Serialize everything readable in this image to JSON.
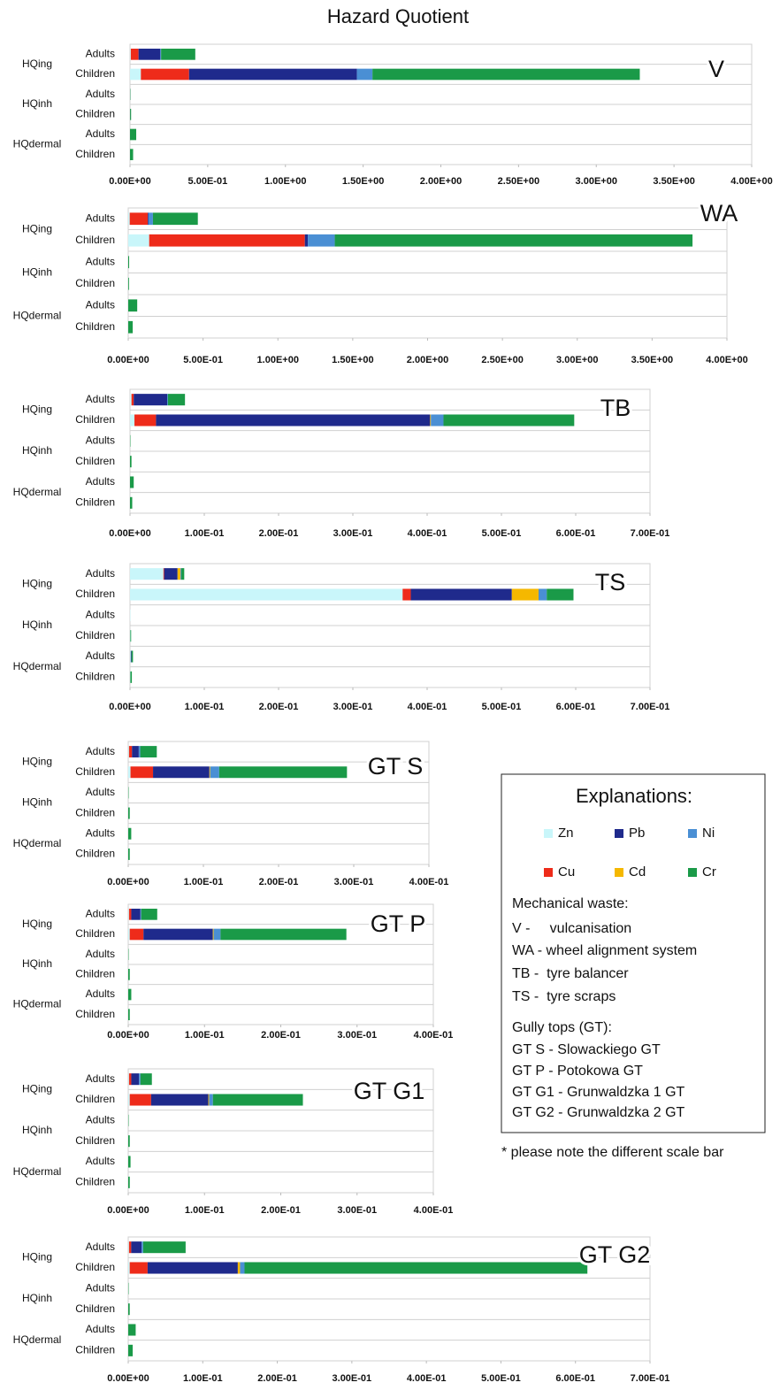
{
  "title": "Hazard Quotient",
  "chart_data": [
    {
      "type": "bar",
      "orientation": "horizontal",
      "stacked": true,
      "panel_label": "V",
      "groups": [
        "HQing",
        "HQinh",
        "HQdermal"
      ],
      "categories": [
        "Adults",
        "Children",
        "Adults",
        "Children",
        "Adults",
        "Children"
      ],
      "series": [
        {
          "name": "Zn",
          "color": "#c9f6fa",
          "values": [
            0.005,
            0.07,
            0,
            0,
            0,
            0
          ]
        },
        {
          "name": "Cu",
          "color": "#ee2b1a",
          "values": [
            0.05,
            0.31,
            0,
            0,
            0,
            0
          ]
        },
        {
          "name": "Pb",
          "color": "#1f2a8c",
          "values": [
            0.14,
            1.08,
            0.001,
            0.001,
            0,
            0
          ]
        },
        {
          "name": "Cd",
          "color": "#f5b800",
          "values": [
            0,
            0,
            0,
            0,
            0,
            0
          ]
        },
        {
          "name": "Ni",
          "color": "#4a8fd4",
          "values": [
            0.005,
            0.1,
            0,
            0,
            0,
            0
          ]
        },
        {
          "name": "Cr",
          "color": "#1a9a48",
          "values": [
            0.22,
            1.72,
            0.002,
            0.006,
            0.04,
            0.02
          ]
        }
      ],
      "xlim": [
        0,
        4
      ],
      "xticks": [
        {
          "value": 0,
          "label": "0.00E+00"
        },
        {
          "value": 0.5,
          "label": "5.00E-01"
        },
        {
          "value": 1,
          "label": "1.00E+00"
        },
        {
          "value": 1.5,
          "label": "1.50E+00"
        },
        {
          "value": 2,
          "label": "2.00E+00"
        },
        {
          "value": 2.5,
          "label": "2.50E+00"
        },
        {
          "value": 3,
          "label": "3.00E+00"
        },
        {
          "value": 3.5,
          "label": "3.50E+00"
        },
        {
          "value": 4,
          "label": "4.00E+00"
        }
      ]
    },
    {
      "type": "bar",
      "orientation": "horizontal",
      "stacked": true,
      "panel_label": "WA",
      "groups": [
        "HQing",
        "HQinh",
        "HQdermal"
      ],
      "categories": [
        "Adults",
        "Children",
        "Adults",
        "Children",
        "Adults",
        "Children"
      ],
      "series": [
        {
          "name": "Zn",
          "color": "#c9f6fa",
          "values": [
            0.01,
            0.14,
            0,
            0,
            0,
            0
          ]
        },
        {
          "name": "Cu",
          "color": "#ee2b1a",
          "values": [
            0.12,
            1.04,
            0,
            0,
            0,
            0
          ]
        },
        {
          "name": "Pb",
          "color": "#1f2a8c",
          "values": [
            0.005,
            0.02,
            0,
            0,
            0,
            0
          ]
        },
        {
          "name": "Cd",
          "color": "#f5b800",
          "values": [
            0,
            0,
            0,
            0,
            0,
            0
          ]
        },
        {
          "name": "Ni",
          "color": "#4a8fd4",
          "values": [
            0.03,
            0.18,
            0,
            0,
            0,
            0
          ]
        },
        {
          "name": "Cr",
          "color": "#1a9a48",
          "values": [
            0.3,
            2.39,
            0.006,
            0.005,
            0.06,
            0.03
          ]
        }
      ],
      "xlim": [
        0,
        4
      ],
      "xticks": [
        {
          "value": 0,
          "label": "0.00E+00"
        },
        {
          "value": 0.5,
          "label": "5.00E-01"
        },
        {
          "value": 1,
          "label": "1.00E+00"
        },
        {
          "value": 1.5,
          "label": "1.50E+00"
        },
        {
          "value": 2,
          "label": "2.00E+00"
        },
        {
          "value": 2.5,
          "label": "2.50E+00"
        },
        {
          "value": 3,
          "label": "3.00E+00"
        },
        {
          "value": 3.5,
          "label": "3.50E+00"
        },
        {
          "value": 4,
          "label": "4.00E+00"
        }
      ]
    },
    {
      "type": "bar",
      "orientation": "horizontal",
      "stacked": true,
      "panel_label": "TB",
      "groups": [
        "HQing",
        "HQinh",
        "HQdermal"
      ],
      "categories": [
        "Adults",
        "Children",
        "Adults",
        "Children",
        "Adults",
        "Children"
      ],
      "series": [
        {
          "name": "Zn",
          "color": "#c9f6fa",
          "values": [
            0.002,
            0.006,
            0,
            0,
            0,
            0
          ]
        },
        {
          "name": "Cu",
          "color": "#ee2b1a",
          "values": [
            0.003,
            0.029,
            0,
            0,
            0,
            0
          ]
        },
        {
          "name": "Pb",
          "color": "#1f2a8c",
          "values": [
            0.045,
            0.369,
            0,
            0,
            0,
            0
          ]
        },
        {
          "name": "Cd",
          "color": "#f5b800",
          "values": [
            0,
            0.001,
            0,
            0,
            0,
            0
          ]
        },
        {
          "name": "Ni",
          "color": "#4a8fd4",
          "values": [
            0.001,
            0.017,
            0,
            0,
            0,
            0
          ]
        },
        {
          "name": "Cr",
          "color": "#1a9a48",
          "values": [
            0.023,
            0.176,
            0.0005,
            0.002,
            0.005,
            0.003
          ]
        }
      ],
      "xlim": [
        0,
        0.7
      ],
      "xticks": [
        {
          "value": 0,
          "label": "0.00E+00"
        },
        {
          "value": 0.1,
          "label": "1.00E-01"
        },
        {
          "value": 0.2,
          "label": "2.00E-01"
        },
        {
          "value": 0.3,
          "label": "3.00E-01"
        },
        {
          "value": 0.4,
          "label": "4.00E-01"
        },
        {
          "value": 0.5,
          "label": "5.00E-01"
        },
        {
          "value": 0.6,
          "label": "6.00E-01"
        },
        {
          "value": 0.7,
          "label": "7.00E-01"
        }
      ]
    },
    {
      "type": "bar",
      "orientation": "horizontal",
      "stacked": true,
      "panel_label": "TS",
      "groups": [
        "HQing",
        "HQinh",
        "HQdermal"
      ],
      "categories": [
        "Adults",
        "Children",
        "Adults",
        "Children",
        "Adults",
        "Children"
      ],
      "series": [
        {
          "name": "Zn",
          "color": "#c9f6fa",
          "values": [
            0.045,
            0.367,
            0.0005,
            0.0005,
            0.001,
            0.0005
          ]
        },
        {
          "name": "Cu",
          "color": "#ee2b1a",
          "values": [
            0.001,
            0.011,
            0,
            0,
            0,
            0
          ]
        },
        {
          "name": "Pb",
          "color": "#1f2a8c",
          "values": [
            0.018,
            0.136,
            0,
            0,
            0.001,
            0
          ]
        },
        {
          "name": "Cd",
          "color": "#f5b800",
          "values": [
            0.004,
            0.036,
            0,
            0,
            0,
            0
          ]
        },
        {
          "name": "Ni",
          "color": "#4a8fd4",
          "values": [
            0.001,
            0.011,
            0,
            0,
            0,
            0
          ]
        },
        {
          "name": "Cr",
          "color": "#1a9a48",
          "values": [
            0.004,
            0.036,
            0,
            0.001,
            0.002,
            0.002
          ]
        }
      ],
      "xlim": [
        0,
        0.7
      ],
      "xticks": [
        {
          "value": 0,
          "label": "0.00E+00"
        },
        {
          "value": 0.1,
          "label": "1.00E-01"
        },
        {
          "value": 0.2,
          "label": "2.00E-01"
        },
        {
          "value": 0.3,
          "label": "3.00E-01"
        },
        {
          "value": 0.4,
          "label": "4.00E-01"
        },
        {
          "value": 0.5,
          "label": "5.00E-01"
        },
        {
          "value": 0.6,
          "label": "6.00E-01"
        },
        {
          "value": 0.7,
          "label": "7.00E-01"
        }
      ]
    },
    {
      "type": "bar",
      "orientation": "horizontal",
      "stacked": true,
      "panel_label": "GT S",
      "groups": [
        "HQing",
        "HQinh",
        "HQdermal"
      ],
      "categories": [
        "Adults",
        "Children",
        "Adults",
        "Children",
        "Adults",
        "Children"
      ],
      "series": [
        {
          "name": "Zn",
          "color": "#c9f6fa",
          "values": [
            0.001,
            0.003,
            0,
            0,
            0,
            0
          ]
        },
        {
          "name": "Cu",
          "color": "#ee2b1a",
          "values": [
            0.004,
            0.03,
            0,
            0,
            0,
            0
          ]
        },
        {
          "name": "Pb",
          "color": "#1f2a8c",
          "values": [
            0.009,
            0.075,
            0,
            0,
            0,
            0
          ]
        },
        {
          "name": "Cd",
          "color": "#f5b800",
          "values": [
            0,
            0.001,
            0,
            0,
            0,
            0
          ]
        },
        {
          "name": "Ni",
          "color": "#4a8fd4",
          "values": [
            0.002,
            0.012,
            0,
            0,
            0,
            0
          ]
        },
        {
          "name": "Cr",
          "color": "#1a9a48",
          "values": [
            0.022,
            0.17,
            0.0005,
            0.002,
            0.004,
            0.002
          ]
        }
      ],
      "xlim": [
        0,
        0.4
      ],
      "xticks": [
        {
          "value": 0,
          "label": "0.00E+00"
        },
        {
          "value": 0.1,
          "label": "1.00E-01"
        },
        {
          "value": 0.2,
          "label": "2.00E-01"
        },
        {
          "value": 0.3,
          "label": "3.00E-01"
        },
        {
          "value": 0.4,
          "label": "4.00E-01"
        }
      ]
    },
    {
      "type": "bar",
      "orientation": "horizontal",
      "stacked": true,
      "panel_label": "GT P",
      "groups": [
        "HQing",
        "HQinh",
        "HQdermal"
      ],
      "categories": [
        "Adults",
        "Children",
        "Adults",
        "Children",
        "Adults",
        "Children"
      ],
      "series": [
        {
          "name": "Zn",
          "color": "#c9f6fa",
          "values": [
            0.001,
            0.002,
            0,
            0,
            0,
            0
          ]
        },
        {
          "name": "Cu",
          "color": "#ee2b1a",
          "values": [
            0.003,
            0.018,
            0,
            0,
            0,
            0
          ]
        },
        {
          "name": "Pb",
          "color": "#1f2a8c",
          "values": [
            0.012,
            0.091,
            0,
            0,
            0,
            0
          ]
        },
        {
          "name": "Cd",
          "color": "#f5b800",
          "values": [
            0,
            0.001,
            0,
            0,
            0,
            0
          ]
        },
        {
          "name": "Ni",
          "color": "#4a8fd4",
          "values": [
            0.001,
            0.009,
            0,
            0,
            0,
            0
          ]
        },
        {
          "name": "Cr",
          "color": "#1a9a48",
          "values": [
            0.021,
            0.165,
            0.0005,
            0.002,
            0.004,
            0.002
          ]
        }
      ],
      "xlim": [
        0,
        0.4
      ],
      "xticks": [
        {
          "value": 0,
          "label": "0.00E+00"
        },
        {
          "value": 0.1,
          "label": "1.00E-01"
        },
        {
          "value": 0.2,
          "label": "2.00E-01"
        },
        {
          "value": 0.3,
          "label": "3.00E-01"
        },
        {
          "value": 0.4,
          "label": "4.00E-01"
        }
      ]
    },
    {
      "type": "bar",
      "orientation": "horizontal",
      "stacked": true,
      "panel_label": "GT G1",
      "groups": [
        "HQing",
        "HQinh",
        "HQdermal"
      ],
      "categories": [
        "Adults",
        "Children",
        "Adults",
        "Children",
        "Adults",
        "Children"
      ],
      "series": [
        {
          "name": "Zn",
          "color": "#c9f6fa",
          "values": [
            0.001,
            0.002,
            0,
            0,
            0,
            0
          ]
        },
        {
          "name": "Cu",
          "color": "#ee2b1a",
          "values": [
            0.003,
            0.028,
            0,
            0,
            0,
            0
          ]
        },
        {
          "name": "Pb",
          "color": "#1f2a8c",
          "values": [
            0.01,
            0.075,
            0,
            0,
            0,
            0
          ]
        },
        {
          "name": "Cd",
          "color": "#f5b800",
          "values": [
            0,
            0.001,
            0,
            0,
            0,
            0
          ]
        },
        {
          "name": "Ni",
          "color": "#4a8fd4",
          "values": [
            0.002,
            0.005,
            0,
            0,
            0,
            0
          ]
        },
        {
          "name": "Cr",
          "color": "#1a9a48",
          "values": [
            0.015,
            0.118,
            0.0005,
            0.002,
            0.003,
            0.002
          ]
        }
      ],
      "xlim": [
        0,
        0.4
      ],
      "xticks": [
        {
          "value": 0,
          "label": "0.00E+00"
        },
        {
          "value": 0.1,
          "label": "1.00E-01"
        },
        {
          "value": 0.2,
          "label": "2.00E-01"
        },
        {
          "value": 0.3,
          "label": "3.00E-01"
        },
        {
          "value": 0.4,
          "label": "4.00E-01"
        }
      ]
    },
    {
      "type": "bar",
      "orientation": "horizontal",
      "stacked": true,
      "panel_label": "GT G2",
      "groups": [
        "HQing",
        "HQinh",
        "HQdermal"
      ],
      "categories": [
        "Adults",
        "Children",
        "Adults",
        "Children",
        "Adults",
        "Children"
      ],
      "series": [
        {
          "name": "Zn",
          "color": "#c9f6fa",
          "values": [
            0.001,
            0.002,
            0,
            0,
            0,
            0
          ]
        },
        {
          "name": "Cu",
          "color": "#ee2b1a",
          "values": [
            0.003,
            0.024,
            0,
            0,
            0,
            0
          ]
        },
        {
          "name": "Pb",
          "color": "#1f2a8c",
          "values": [
            0.014,
            0.121,
            0,
            0,
            0,
            0
          ]
        },
        {
          "name": "Cd",
          "color": "#f5b800",
          "values": [
            0,
            0.003,
            0,
            0,
            0,
            0
          ]
        },
        {
          "name": "Ni",
          "color": "#4a8fd4",
          "values": [
            0.002,
            0.006,
            0,
            0,
            0,
            0
          ]
        },
        {
          "name": "Cr",
          "color": "#1a9a48",
          "values": [
            0.057,
            0.46,
            0.0005,
            0.002,
            0.01,
            0.006
          ]
        }
      ],
      "xlim": [
        0,
        0.7
      ],
      "xticks": [
        {
          "value": 0,
          "label": "0.00E+00"
        },
        {
          "value": 0.1,
          "label": "1.00E-01"
        },
        {
          "value": 0.2,
          "label": "2.00E-01"
        },
        {
          "value": 0.3,
          "label": "3.00E-01"
        },
        {
          "value": 0.4,
          "label": "4.00E-01"
        },
        {
          "value": 0.5,
          "label": "5.00E-01"
        },
        {
          "value": 0.6,
          "label": "6.00E-01"
        },
        {
          "value": 0.7,
          "label": "7.00E-01"
        }
      ]
    }
  ],
  "explanations": {
    "title": "Explanations:",
    "lines": [
      "Mechanical waste:",
      "V -     vulcanisation",
      "WA - wheel alignment system",
      "TB -  tyre balancer",
      "TS -  tyre scraps",
      "Gully tops (GT):",
      "GT S - Slowackiego GT",
      "GT P - Potokowa GT",
      "GT G1 - Grunwaldzka 1 GT",
      "GT G2 - Grunwaldzka 2 GT"
    ]
  },
  "note": "* please note the different scale bar"
}
